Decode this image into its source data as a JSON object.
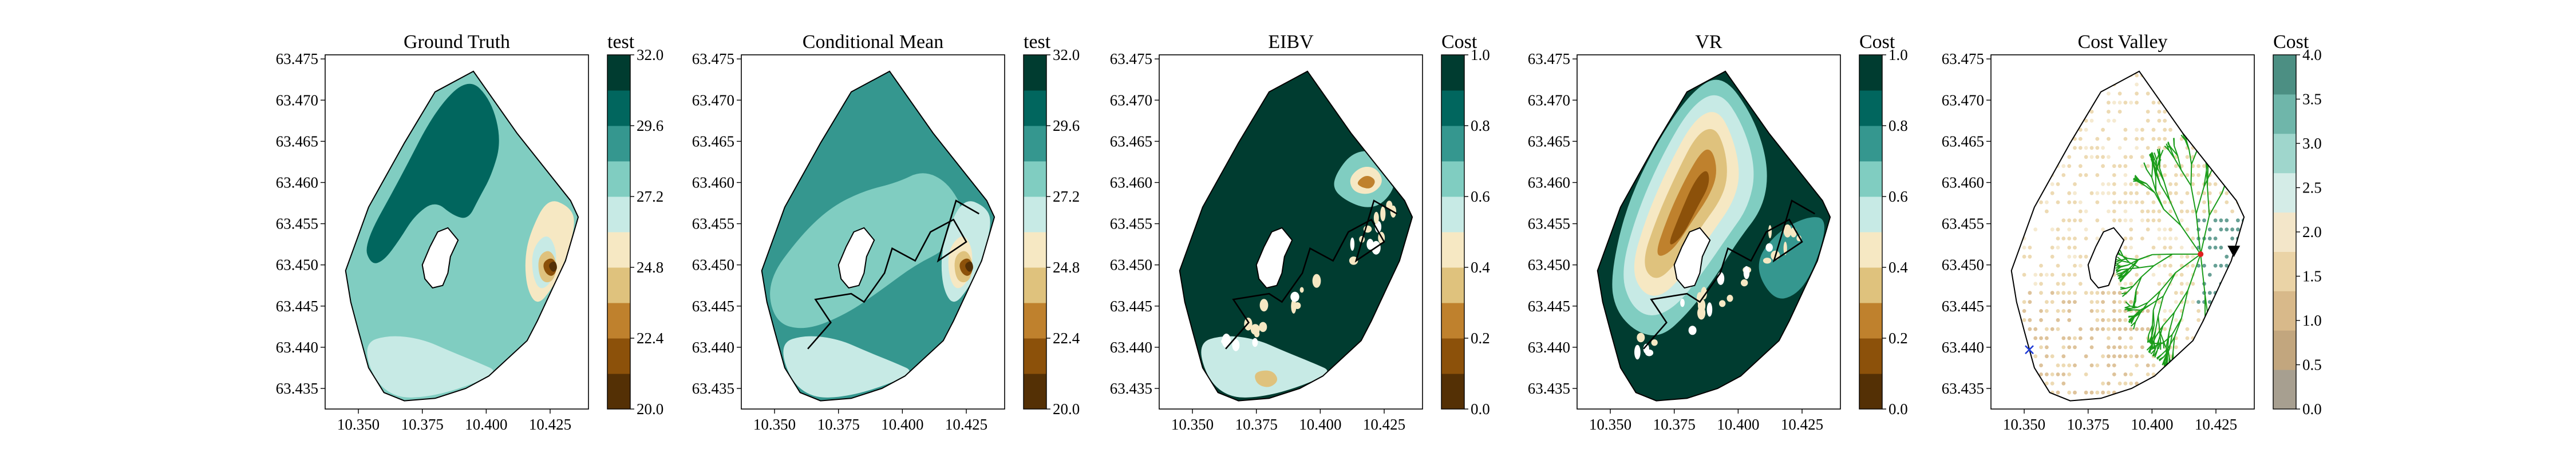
{
  "palettes": {
    "brbg": [
      "#543005",
      "#8c510a",
      "#bf812d",
      "#dfc27d",
      "#f6e8c3",
      "#c7eae5",
      "#80cdc1",
      "#35978f",
      "#01665e",
      "#003c30"
    ],
    "cost": [
      "#a79f90",
      "#c2a67e",
      "#d8b98a",
      "#ead3a6",
      "#f3e6c9",
      "#d4ece7",
      "#9fd6cc",
      "#6fb6aa",
      "#4c8f83"
    ]
  },
  "figure": {
    "panels": [
      {
        "title": "Ground Truth",
        "colorbar": {
          "label": "test",
          "min": 20.0,
          "max": 32.0,
          "n_bands": 10,
          "palette": "brbg",
          "ticks": [
            "20.0",
            "22.4",
            "24.8",
            "27.2",
            "29.6",
            "32.0"
          ]
        },
        "field": {
          "background": 6,
          "regions": [
            {
              "band": 8,
              "shape": "nw-highland"
            },
            {
              "band": 4,
              "shape": "east-lobe"
            },
            {
              "band": 5,
              "shape": "east-lobe-rim"
            },
            {
              "band": 3,
              "shape": "hotspot-1"
            },
            {
              "band": 1,
              "shape": "hotspot-2"
            },
            {
              "band": 0,
              "shape": "hotspot-3"
            },
            {
              "band": 5,
              "shape": "south-tongue"
            }
          ]
        },
        "path": null,
        "markers": []
      },
      {
        "title": "Conditional Mean",
        "colorbar": {
          "label": "test",
          "min": 20.0,
          "max": 32.0,
          "n_bands": 10,
          "palette": "brbg",
          "ticks": [
            "20.0",
            "22.4",
            "24.8",
            "27.2",
            "29.6",
            "32.0"
          ]
        },
        "field": {
          "background": 7,
          "regions": [
            {
              "band": 6,
              "shape": "central-band"
            },
            {
              "band": 5,
              "shape": "east-lobe"
            },
            {
              "band": 4,
              "shape": "east-lobe-rim"
            },
            {
              "band": 3,
              "shape": "hotspot-1"
            },
            {
              "band": 1,
              "shape": "hotspot-2"
            },
            {
              "band": 0,
              "shape": "hotspot-3"
            },
            {
              "band": 5,
              "shape": "south-tongue"
            }
          ]
        },
        "path": "main",
        "markers": []
      },
      {
        "title": "EIBV",
        "colorbar": {
          "label": "Cost",
          "min": 0.0,
          "max": 1.0,
          "n_bands": 10,
          "palette": "brbg",
          "ticks": [
            "0.0",
            "0.2",
            "0.4",
            "0.6",
            "0.8",
            "1.0"
          ]
        },
        "field": {
          "background": 9,
          "regions": [
            {
              "band": 6,
              "shape": "eibv-blob-outer"
            },
            {
              "band": 4,
              "shape": "eibv-blob-mid"
            },
            {
              "band": 2,
              "shape": "eibv-blob-core"
            },
            {
              "band": 5,
              "shape": "south-tongue"
            },
            {
              "band": 3,
              "shape": "south-hot"
            }
          ]
        },
        "path": "main",
        "holes": true,
        "markers": []
      },
      {
        "title": "VR",
        "colorbar": {
          "label": "Cost",
          "min": 0.0,
          "max": 1.0,
          "n_bands": 10,
          "palette": "brbg",
          "ticks": [
            "0.0",
            "0.2",
            "0.4",
            "0.6",
            "0.8",
            "1.0"
          ]
        },
        "field": {
          "background": 9,
          "regions": [
            {
              "band": 6,
              "shape": "vr-1"
            },
            {
              "band": 5,
              "shape": "vr-2"
            },
            {
              "band": 4,
              "shape": "vr-3"
            },
            {
              "band": 3,
              "shape": "vr-4"
            },
            {
              "band": 2,
              "shape": "vr-5"
            },
            {
              "band": 1,
              "shape": "vr-6"
            },
            {
              "band": 7,
              "shape": "vr-east"
            }
          ]
        },
        "path": "main",
        "holes": true,
        "markers": []
      },
      {
        "title": "Cost Valley",
        "colorbar": {
          "label": "Cost",
          "min": 0.0,
          "max": 4.0,
          "n_bands": 9,
          "palette": "cost",
          "ticks": [
            "0.0",
            "0.5",
            "1.0",
            "1.5",
            "2.0",
            "2.5",
            "3.0",
            "3.5",
            "4.0"
          ]
        },
        "field": {
          "background": -1,
          "regions": []
        },
        "path": null,
        "dots": true,
        "tree": true,
        "markers": [
          {
            "symbol": "triangle-down",
            "lon": 10.432,
            "lat": 63.4517,
            "color": "#000000"
          },
          {
            "symbol": "cross",
            "lon": 10.352,
            "lat": 63.4397,
            "color": "#1f3bd6"
          },
          {
            "symbol": "star",
            "lon": 10.419,
            "lat": 63.4513,
            "color": "#e01f1f"
          }
        ]
      }
    ]
  },
  "chart_data": [
    {
      "type": "heatmap",
      "title": "Ground Truth",
      "colorbar_label": "test",
      "zlim": [
        20.0,
        32.0
      ],
      "xlim": [
        10.337,
        10.44
      ],
      "ylim": [
        63.4325,
        63.4755
      ],
      "xticks": [
        "10.350",
        "10.375",
        "10.400",
        "10.425"
      ],
      "yticks": [
        "63.435",
        "63.440",
        "63.445",
        "63.450",
        "63.455",
        "63.460",
        "63.465",
        "63.470",
        "63.475"
      ]
    },
    {
      "type": "heatmap",
      "title": "Conditional Mean",
      "colorbar_label": "test",
      "zlim": [
        20.0,
        32.0
      ],
      "xlim": [
        10.337,
        10.44
      ],
      "ylim": [
        63.4325,
        63.4755
      ],
      "xticks": [
        "10.350",
        "10.375",
        "10.400",
        "10.425"
      ],
      "yticks": [
        "63.435",
        "63.440",
        "63.445",
        "63.450",
        "63.455",
        "63.460",
        "63.465",
        "63.470",
        "63.475"
      ],
      "path": {
        "lon": [
          10.363,
          10.372,
          10.366,
          10.38,
          10.385,
          10.393,
          10.396,
          10.405,
          10.411,
          10.42,
          10.425,
          10.414,
          10.421,
          10.43
        ],
        "lat": [
          63.4398,
          63.443,
          63.4458,
          63.4465,
          63.4455,
          63.449,
          63.452,
          63.4505,
          63.454,
          63.4555,
          63.4528,
          63.4505,
          63.4578,
          63.4562
        ]
      }
    },
    {
      "type": "heatmap",
      "title": "EIBV",
      "colorbar_label": "Cost",
      "zlim": [
        0.0,
        1.0
      ],
      "xlim": [
        10.337,
        10.44
      ],
      "ylim": [
        63.4325,
        63.4755
      ],
      "xticks": [
        "10.350",
        "10.375",
        "10.400",
        "10.425"
      ],
      "yticks": [
        "63.435",
        "63.440",
        "63.445",
        "63.450",
        "63.455",
        "63.460",
        "63.465",
        "63.470",
        "63.475"
      ]
    },
    {
      "type": "heatmap",
      "title": "VR",
      "colorbar_label": "Cost",
      "zlim": [
        0.0,
        1.0
      ],
      "xlim": [
        10.337,
        10.44
      ],
      "ylim": [
        63.4325,
        63.4755
      ],
      "xticks": [
        "10.350",
        "10.375",
        "10.400",
        "10.425"
      ],
      "yticks": [
        "63.435",
        "63.440",
        "63.445",
        "63.450",
        "63.455",
        "63.460",
        "63.465",
        "63.470",
        "63.475"
      ]
    },
    {
      "type": "scatter",
      "title": "Cost Valley",
      "colorbar_label": "Cost",
      "zlim": [
        0.0,
        4.0
      ],
      "xlim": [
        10.337,
        10.44
      ],
      "ylim": [
        63.4325,
        63.4755
      ],
      "xticks": [
        "10.350",
        "10.375",
        "10.400",
        "10.425"
      ],
      "yticks": [
        "63.435",
        "63.440",
        "63.445",
        "63.450",
        "63.455",
        "63.460",
        "63.465",
        "63.470",
        "63.475"
      ]
    }
  ]
}
